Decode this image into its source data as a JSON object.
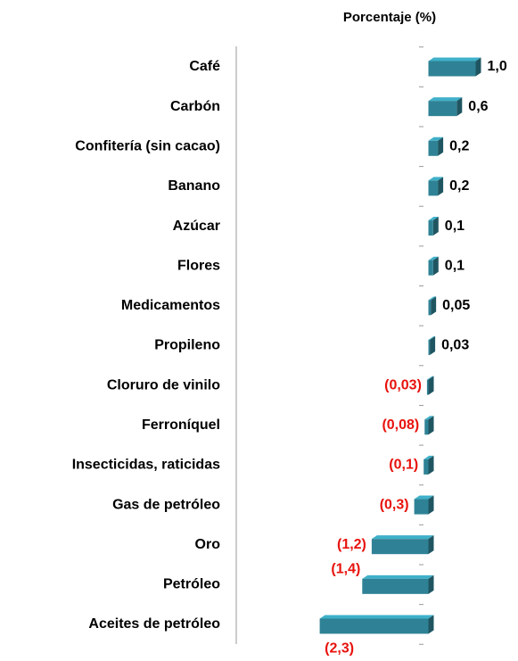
{
  "chart_data": {
    "type": "bar",
    "orientation": "horizontal",
    "x_label": "Porcentaje (%)",
    "categories": [
      "Café",
      "Carbón",
      "Confitería (sin cacao)",
      "Banano",
      "Azúcar",
      "Flores",
      "Medicamentos",
      "Propileno ",
      "Cloruro de vinilo",
      "Ferroníquel",
      "Insecticidas, raticidas",
      "Gas de petróleo",
      "Oro",
      "Petróleo",
      "Aceites de petróleo"
    ],
    "values": [
      1.0,
      0.6,
      0.2,
      0.2,
      0.1,
      0.1,
      0.05,
      0.03,
      -0.03,
      -0.08,
      -0.1,
      -0.3,
      -1.2,
      -1.4,
      -2.3
    ],
    "value_labels": [
      "1,0",
      "0,6",
      "0,2",
      "0,2",
      "0,1",
      "0,1",
      "0,05",
      "0,03",
      "(0,03)",
      "(0,08)",
      "(0,1)",
      "(0,3)",
      "(1,2)",
      "(1,4)",
      "(2,3)"
    ],
    "color": "#2f8295",
    "negative_label_color": "#e8120c",
    "xlim": [
      -2.5,
      1.5
    ]
  }
}
